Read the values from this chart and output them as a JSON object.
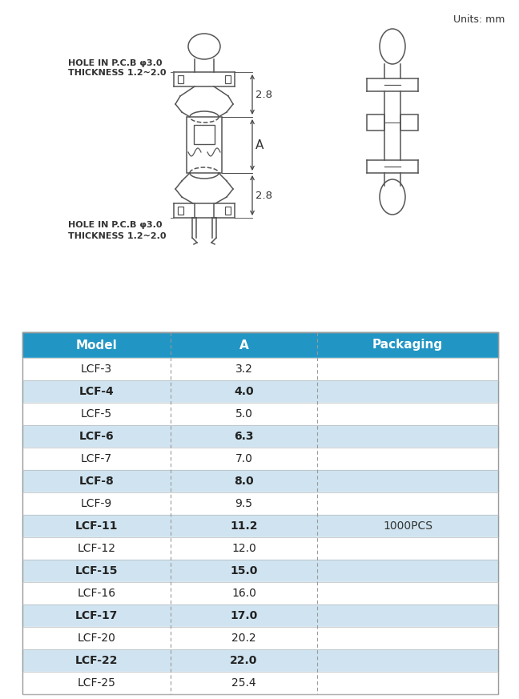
{
  "units_label": "Units: mm",
  "hole_label_top": "HOLE IN P.C.B φ3.0",
  "thickness_label_top": "THICKNESS 1.2~2.0",
  "hole_label_bottom": "HOLE IN P.C.B φ3.0",
  "thickness_label_bottom": "THICKNESS 1.2~2.0",
  "dim_28_top": "2.8",
  "dim_28_bottom": "2.8",
  "dim_A": "A",
  "header_color": "#2196c4",
  "header_text_color": "#ffffff",
  "row_alt_color": "#cfe4f0",
  "row_normal_color": "#ffffff",
  "border_color": "#aaaaaa",
  "packaging_label": "1000PCS",
  "columns": [
    "Model",
    "A",
    "Packaging"
  ],
  "rows": [
    [
      "LCF-3",
      "3.2",
      ""
    ],
    [
      "LCF-4",
      "4.0",
      ""
    ],
    [
      "LCF-5",
      "5.0",
      ""
    ],
    [
      "LCF-6",
      "6.3",
      ""
    ],
    [
      "LCF-7",
      "7.0",
      ""
    ],
    [
      "LCF-8",
      "8.0",
      ""
    ],
    [
      "LCF-9",
      "9.5",
      ""
    ],
    [
      "LCF-11",
      "11.2",
      "1000PCS"
    ],
    [
      "LCF-12",
      "12.0",
      ""
    ],
    [
      "LCF-15",
      "15.0",
      ""
    ],
    [
      "LCF-16",
      "16.0",
      ""
    ],
    [
      "LCF-17",
      "17.0",
      ""
    ],
    [
      "LCF-20",
      "20.2",
      ""
    ],
    [
      "LCF-22",
      "22.0",
      ""
    ],
    [
      "LCF-25",
      "25.4",
      ""
    ]
  ],
  "fig_width": 6.48,
  "fig_height": 8.73,
  "bg_color": "#ffffff",
  "draw_color": "#555555",
  "draw_lw": 1.1
}
